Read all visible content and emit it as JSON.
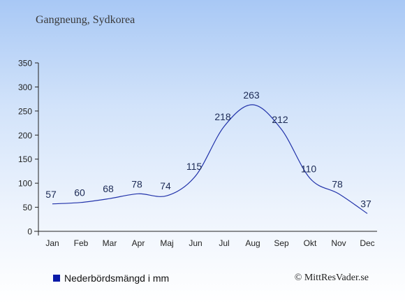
{
  "header": {
    "title": "Gangneung, Sydkorea"
  },
  "legend": {
    "label": "Nederbördsmängd i mm",
    "color": "#0a1aa8"
  },
  "credit": "© MittResVader.se",
  "chart_data": {
    "type": "line",
    "categories": [
      "Jan",
      "Feb",
      "Mar",
      "Apr",
      "Maj",
      "Jun",
      "Jul",
      "Aug",
      "Sep",
      "Okt",
      "Nov",
      "Dec"
    ],
    "series": [
      {
        "name": "Nederbördsmängd i mm",
        "values": [
          57,
          60,
          68,
          78,
          74,
          115,
          218,
          263,
          212,
          110,
          78,
          37
        ],
        "color": "#2233aa"
      }
    ],
    "data_labels": [
      "57",
      "60",
      "68",
      "78",
      "74",
      "115",
      "218",
      "263",
      "212",
      "110",
      "78",
      "37"
    ],
    "ylim": [
      0,
      350
    ],
    "yticks": [
      0,
      50,
      100,
      150,
      200,
      250,
      300,
      350
    ],
    "grid": false,
    "legend_position": "bottom-left"
  }
}
